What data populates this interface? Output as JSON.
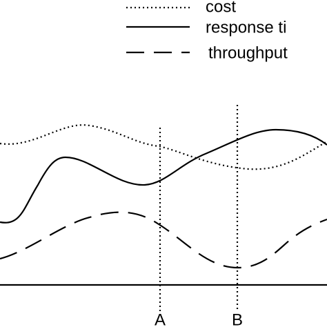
{
  "legend": {
    "items": [
      {
        "label": "cost"
      },
      {
        "label": "response ti"
      },
      {
        "label": "throughput"
      }
    ]
  },
  "markers": [
    "A",
    "B"
  ]
}
